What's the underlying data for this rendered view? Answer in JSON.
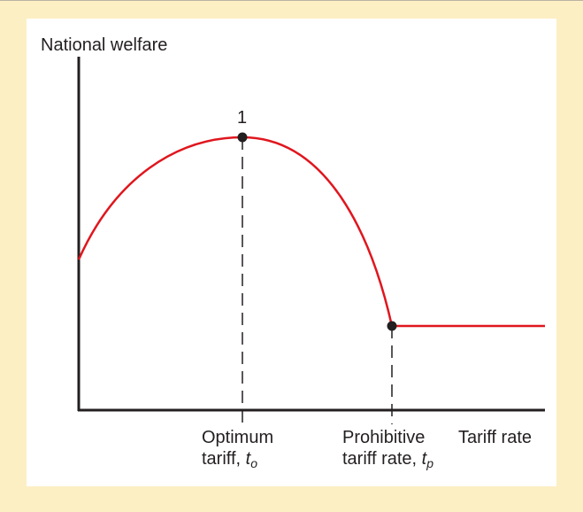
{
  "chart_data": {
    "type": "line",
    "ylabel": "National welfare",
    "xlabel": "Tariff rate",
    "axis_units": "relative (origin = 0, end of axis = 1)",
    "series": [
      {
        "name": "National welfare curve",
        "color": "#e0161e",
        "x": [
          0.0,
          0.05,
          0.1,
          0.15,
          0.2,
          0.25,
          0.3,
          0.35,
          0.4,
          0.45,
          0.5,
          0.55,
          0.6,
          0.62,
          0.67,
          0.7,
          0.75,
          0.8,
          0.85,
          0.9,
          0.95,
          1.0
        ],
        "y": [
          0.43,
          0.58,
          0.68,
          0.75,
          0.8,
          0.83,
          0.84,
          0.83,
          0.8,
          0.75,
          0.67,
          0.55,
          0.35,
          0.24,
          0.24,
          0.24,
          0.24,
          0.24,
          0.24,
          0.24,
          0.24,
          0.24
        ]
      }
    ],
    "points": [
      {
        "name": "optimum",
        "label": "1",
        "x": 0.35,
        "y": 0.78
      },
      {
        "name": "prohibitive",
        "label": "",
        "x": 0.67,
        "y": 0.24
      }
    ]
  },
  "labels": {
    "y_axis_title": "National welfare",
    "x_axis_title": "Tariff rate",
    "point_label": "1",
    "optimum_line1": "Optimum",
    "optimum_line2": "tariff, ",
    "optimum_symbol": "t",
    "optimum_sub": "o",
    "prohibitive_line1": "Prohibitive",
    "prohibitive_line2": "tariff rate, ",
    "prohibitive_symbol": "t",
    "prohibitive_sub": "p"
  },
  "colors": {
    "background": "#fdefc4",
    "panel": "#ffffff",
    "curve": "#e0161e",
    "axis": "#231f20",
    "text": "#231f20"
  }
}
